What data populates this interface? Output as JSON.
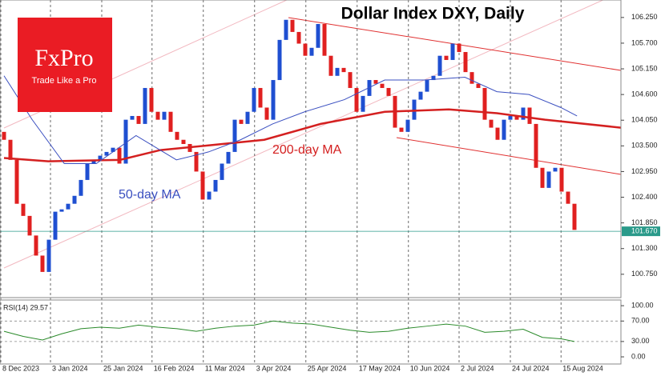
{
  "chart_data": {
    "type": "candlestick",
    "title": "Dollar Index DXY, Daily",
    "logo": {
      "name": "FxPro",
      "tagline": "Trade Like a Pro"
    },
    "annotations": [
      {
        "text": "200-day MA",
        "color": "#d42020"
      },
      {
        "text": "50-day MA",
        "color": "#3a4fc0"
      }
    ],
    "up_color": "#1f4fd1",
    "down_color": "#e02020",
    "open": [
      103.8,
      103.63,
      103.2,
      102.26,
      102.0,
      101.58,
      101.15,
      100.8,
      101.49,
      102.09,
      102.14,
      102.26,
      102.43,
      102.77,
      103.12,
      103.2,
      103.29,
      103.37,
      103.46,
      103.12,
      104.06,
      104.14,
      103.97,
      104.74,
      104.23,
      104.06,
      104.23,
      103.8,
      103.63,
      103.54,
      103.37,
      102.95,
      102.35,
      102.52,
      102.77,
      103.12,
      103.37,
      104.06,
      103.97,
      104.23,
      104.74,
      104.32,
      104.06,
      104.91,
      105.77,
      106.2,
      105.94,
      105.69,
      105.43,
      105.6,
      106.11,
      105.43,
      105.0,
      105.17,
      105.08,
      104.74,
      104.23,
      104.57,
      104.91,
      104.83,
      104.74,
      104.57,
      103.89,
      103.8,
      104.06,
      104.49,
      104.66,
      104.91,
      105.0,
      105.43,
      105.34,
      105.69,
      105.51,
      105.08,
      104.83,
      104.74,
      104.06,
      103.89,
      103.63,
      104.06,
      104.14,
      104.06,
      104.32,
      103.97,
      103.03,
      102.6,
      102.95,
      103.03,
      102.52,
      102.26
    ],
    "close": [
      103.63,
      103.2,
      102.26,
      102.0,
      101.58,
      101.15,
      100.8,
      101.49,
      102.09,
      102.14,
      102.26,
      102.43,
      102.77,
      103.12,
      103.2,
      103.29,
      103.37,
      103.46,
      103.12,
      104.06,
      104.14,
      103.97,
      104.74,
      104.23,
      104.06,
      104.23,
      103.8,
      103.63,
      103.54,
      103.37,
      102.95,
      102.35,
      102.52,
      102.77,
      103.12,
      103.37,
      104.06,
      103.97,
      104.23,
      104.74,
      104.32,
      104.06,
      104.91,
      105.77,
      106.2,
      105.94,
      105.69,
      105.43,
      105.6,
      106.11,
      105.43,
      105.0,
      105.17,
      105.08,
      104.74,
      104.23,
      104.57,
      104.91,
      104.83,
      104.74,
      104.57,
      103.89,
      103.8,
      104.06,
      104.49,
      104.66,
      104.91,
      105.0,
      105.43,
      105.34,
      105.69,
      105.51,
      105.08,
      104.83,
      104.74,
      104.06,
      103.89,
      103.63,
      104.06,
      104.14,
      104.06,
      104.32,
      103.97,
      103.03,
      102.6,
      102.95,
      103.03,
      102.52,
      102.26,
      101.7
    ],
    "series": [
      {
        "name": "200-day MA",
        "color": "#d42020",
        "x": [
          0,
          6.9,
          18.1,
          24.4,
          31.9,
          40.6,
          49.4,
          59.4,
          69.4,
          76.9,
          84.4,
          96.25
        ],
        "values": [
          103.24,
          103.17,
          103.2,
          103.41,
          103.51,
          103.63,
          103.97,
          104.23,
          104.28,
          104.2,
          104.06,
          103.89
        ]
      },
      {
        "name": "50-day MA",
        "color": "#3a4fc0",
        "x": [
          0,
          4.4,
          9.4,
          14.4,
          20.6,
          26.9,
          31.9,
          36.9,
          41.9,
          46.9,
          53.1,
          59.4,
          65.6,
          71.9,
          76.9,
          81.9,
          86.9,
          89.4
        ],
        "values": [
          105.0,
          104.06,
          103.12,
          103.12,
          103.72,
          103.2,
          103.37,
          103.63,
          103.97,
          104.23,
          104.49,
          104.91,
          104.91,
          104.97,
          104.66,
          104.6,
          104.32,
          104.14
        ]
      }
    ],
    "last_price": {
      "value": 101.67,
      "label": "101.670"
    },
    "xlim": [
      -0.625,
      96.25
    ],
    "xticks": [
      {
        "value": -0.5,
        "label": "8 Dec 2023"
      },
      {
        "value": 7.25,
        "label": "3 Jan 2024"
      },
      {
        "value": 15.25,
        "label": "25 Jan 2024"
      },
      {
        "value": 23.1,
        "label": "16 Feb 2024"
      },
      {
        "value": 31.1,
        "label": "11 Mar 2024"
      },
      {
        "value": 39.1,
        "label": "3 Apr 2024"
      },
      {
        "value": 47.1,
        "label": "25 Apr 2024"
      },
      {
        "value": 55.1,
        "label": "17 May 2024"
      },
      {
        "value": 63.1,
        "label": "10 Jun 2024"
      },
      {
        "value": 71,
        "label": "2 Jul 2024"
      },
      {
        "value": 79,
        "label": "24 Jul 2024"
      },
      {
        "value": 86.9,
        "label": "15 Aug 2024"
      }
    ],
    "ylim": [
      100.25,
      106.59
    ],
    "yticks": [
      {
        "value": 106.25,
        "label": "106.250"
      },
      {
        "value": 105.7,
        "label": "105.700"
      },
      {
        "value": 105.15,
        "label": "105.150"
      },
      {
        "value": 104.6,
        "label": "104.600"
      },
      {
        "value": 104.05,
        "label": "104.050"
      },
      {
        "value": 103.5,
        "label": "103.500"
      },
      {
        "value": 102.95,
        "label": "102.950"
      },
      {
        "value": 102.4,
        "label": "102.400"
      },
      {
        "value": 101.85,
        "label": "101.850"
      },
      {
        "value": 101.3,
        "label": "101.300"
      },
      {
        "value": 100.75,
        "label": "100.750"
      }
    ],
    "rsi": {
      "title": "RSI(14) 29.57",
      "color": "#2a8a2a",
      "x": [
        0,
        3,
        6,
        9,
        12,
        15,
        18,
        21,
        24,
        27,
        30,
        33,
        36,
        39,
        42,
        45,
        48,
        51,
        54,
        57,
        60,
        63,
        66,
        69,
        72,
        75,
        78,
        81,
        84,
        87,
        89
      ],
      "values": [
        50,
        40,
        33,
        45,
        55,
        58,
        56,
        62,
        58,
        55,
        50,
        56,
        60,
        62,
        70,
        66,
        64,
        58,
        52,
        48,
        50,
        56,
        60,
        64,
        60,
        48,
        50,
        54,
        38,
        35,
        30
      ],
      "ylim": [
        -14,
        108
      ],
      "yticks": [
        {
          "value": 100,
          "label": "100.00"
        },
        {
          "value": 70,
          "label": "70.00"
        },
        {
          "value": 30,
          "label": "30.00"
        },
        {
          "value": 0,
          "label": "0.00"
        }
      ],
      "levels": [
        {
          "value": 70
        },
        {
          "value": 30
        }
      ]
    }
  }
}
